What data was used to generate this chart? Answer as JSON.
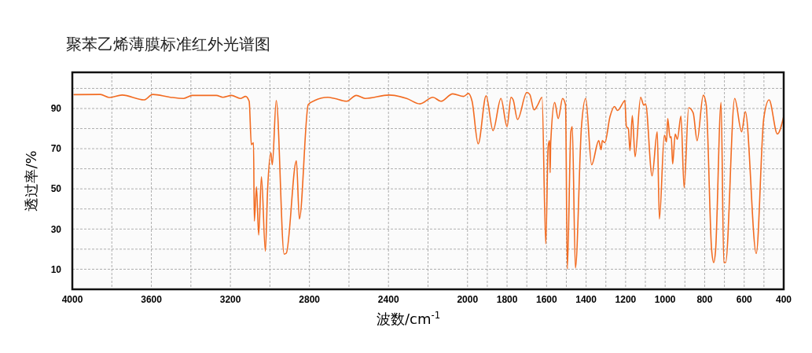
{
  "chart_data": {
    "type": "line",
    "title": "聚苯乙烯薄膜标准红外光谱图",
    "xlabel": "波数/cm$^{-1}$",
    "ylabel": "透过率/%",
    "xlim": [
      4000,
      400
    ],
    "xticks": [
      4000,
      {
        "value": 3800,
        "label": null
      },
      3600,
      {
        "value": 3400,
        "label": null
      },
      3200,
      {
        "value": 3000,
        "label": null
      },
      2800,
      {
        "value": 2600,
        "label": null
      },
      2400,
      {
        "value": 2200,
        "label": null
      },
      2000,
      {
        "value": 1900,
        "label": null
      },
      1800,
      {
        "value": 1700,
        "label": null
      },
      1600,
      {
        "value": 1500,
        "label": null
      },
      1400,
      {
        "value": 1300,
        "label": null
      },
      1200,
      {
        "value": 1100,
        "label": null
      },
      1000,
      {
        "value": 900,
        "label": null
      },
      800,
      {
        "value": 700,
        "label": null
      },
      600,
      {
        "value": 500,
        "label": null
      },
      400
    ],
    "ylim": [
      0,
      108
    ],
    "yticks": [
      10,
      {
        "value": 20,
        "label": null
      },
      30,
      {
        "value": 40,
        "label": null
      },
      50,
      {
        "value": 60,
        "label": null
      },
      70,
      {
        "value": 80,
        "label": null
      },
      90,
      {
        "value": 100,
        "label": null
      }
    ],
    "grid": true,
    "marker": "none",
    "line_style": "solid",
    "x": [
      3991,
      3858,
      3814,
      3748,
      3637,
      3593,
      3504,
      3437,
      3393,
      3271,
      3238,
      3194,
      3150,
      3123,
      3105,
      3094,
      3083,
      3079,
      3068,
      3057,
      3043,
      3023,
      3012,
      2995,
      2988,
      2968,
      2928,
      2917,
      2866,
      2851,
      2806,
      2773,
      2707,
      2673,
      2613,
      2563,
      2518,
      2397,
      2308,
      2241,
      2175,
      2135,
      2075,
      2020,
      1995,
      1977,
      1946,
      1906,
      1871,
      1831,
      1800,
      1780,
      1769,
      1747,
      1700,
      1685,
      1663,
      1645,
      1623,
      1604,
      1592,
      1585,
      1582,
      1579,
      1559,
      1541,
      1519,
      1504,
      1495,
      1477,
      1470,
      1454,
      1424,
      1402,
      1372,
      1336,
      1324,
      1318,
      1305,
      1279,
      1256,
      1241,
      1208,
      1204,
      1196,
      1186,
      1178,
      1166,
      1152,
      1124,
      1108,
      1099,
      1066,
      1040,
      1029,
      1004,
      993,
      987,
      975,
      969,
      962,
      949,
      938,
      920,
      904,
      881,
      858,
      838,
      807,
      792,
      765,
      754,
      745,
      717,
      703,
      694,
      648,
      613,
      594,
      539,
      501,
      474,
      432,
      400
    ],
    "series": [
      {
        "color": "#f26b21",
        "values": [
          96.9,
          97,
          95.5,
          96.7,
          94.3,
          97,
          95.6,
          95,
          96.5,
          96.5,
          95.6,
          96.5,
          95,
          96,
          93.6,
          72,
          73,
          34,
          51,
          27,
          56,
          19,
          49,
          68,
          62,
          94,
          17.5,
          18,
          64,
          35,
          92,
          94,
          95.6,
          95,
          93.6,
          96.5,
          95,
          96.7,
          95,
          92.3,
          95.6,
          93.6,
          97.3,
          96,
          97.5,
          93.6,
          72.4,
          96.3,
          79,
          95,
          81,
          95.6,
          94.3,
          84.5,
          98,
          97,
          89.3,
          91.7,
          95.6,
          22.6,
          71,
          74,
          58,
          73,
          93,
          85,
          95,
          91.7,
          10.2,
          78.6,
          81,
          10.6,
          80,
          95,
          62,
          74,
          69.5,
          74,
          73,
          86,
          91,
          89,
          93.6,
          94,
          81,
          80,
          69,
          86.5,
          66,
          95.6,
          91.7,
          92.3,
          56.5,
          78.4,
          35,
          76.7,
          73.4,
          85,
          75.4,
          76,
          62.4,
          77.3,
          74.7,
          86.3,
          50.6,
          90.4,
          87.8,
          74,
          96.6,
          91.7,
          20,
          13.3,
          19,
          93,
          13.3,
          13.3,
          95,
          78.4,
          88.4,
          17.8,
          85,
          94.3,
          77.3,
          86
        ]
      }
    ]
  }
}
